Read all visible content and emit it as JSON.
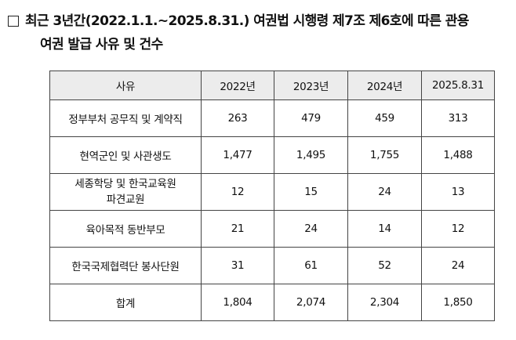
{
  "heading": {
    "box_icon": "square-box-icon",
    "line1": "최근 3년간(2022.1.1.~2025.8.31.) 여권법 시행령 제7조 제6호에 따른 관용",
    "line2": "여권 발급 사유 및 건수"
  },
  "table": {
    "headers": [
      "사유",
      "2022년",
      "2023년",
      "2024년",
      "2025.8.31"
    ],
    "rows": [
      {
        "reason": "정부부처 공무직 및 계약직",
        "values": [
          "263",
          "479",
          "459",
          "313"
        ]
      },
      {
        "reason": "현역군인 및 사관생도",
        "values": [
          "1,477",
          "1,495",
          "1,755",
          "1,488"
        ]
      },
      {
        "reason_lines": [
          "세종학당 및 한국교육원",
          "파견교원"
        ],
        "values": [
          "12",
          "15",
          "24",
          "13"
        ]
      },
      {
        "reason": "육아목적 동반부모",
        "values": [
          "21",
          "24",
          "14",
          "12"
        ]
      },
      {
        "reason": "한국국제협력단 봉사단원",
        "values": [
          "31",
          "61",
          "52",
          "24"
        ]
      }
    ],
    "total": {
      "reason": "합계",
      "values": [
        "1,804",
        "2,074",
        "2,304",
        "1,850"
      ]
    }
  }
}
